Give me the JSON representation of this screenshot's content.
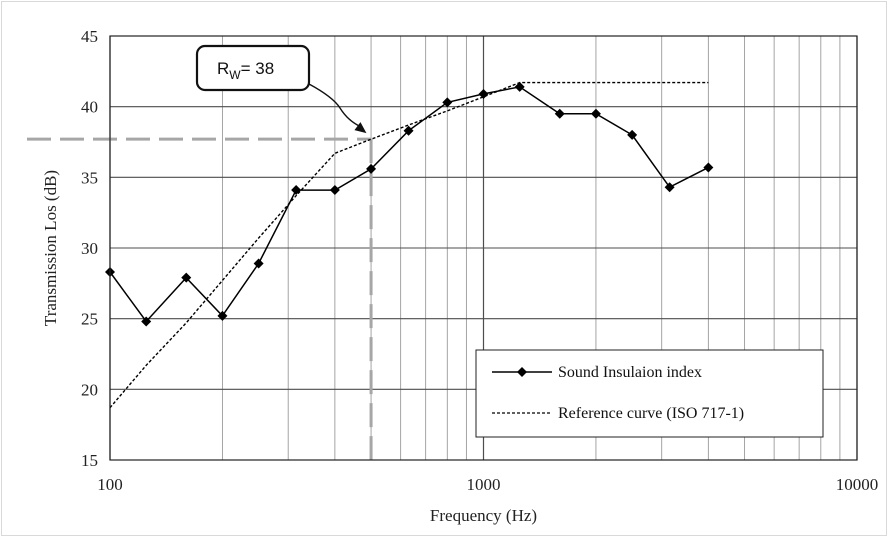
{
  "chart_data": {
    "type": "line",
    "xlabel": "Frequency  (Hz)",
    "ylabel": "Transmission Los (dB)",
    "x_scale": "log",
    "xlim": [
      100,
      10000
    ],
    "ylim": [
      15,
      45
    ],
    "x_ticks": [
      100,
      1000,
      10000
    ],
    "x_tick_labels": [
      "100",
      "1000",
      "10000"
    ],
    "y_ticks": [
      15,
      20,
      25,
      30,
      35,
      40,
      45
    ],
    "y_tick_labels": [
      "15",
      "20",
      "25",
      "30",
      "35",
      "40",
      "45"
    ],
    "grid": true,
    "legend_position": "bottom-right",
    "series": [
      {
        "name": "Sound Insulaion index",
        "style": "solid-diamond",
        "color": "#000000",
        "x": [
          100,
          125,
          160,
          200,
          250,
          315,
          400,
          500,
          630,
          800,
          1000,
          1250,
          1600,
          2000,
          2500,
          3150,
          4000
        ],
        "y": [
          28.3,
          24.8,
          27.9,
          25.2,
          28.9,
          34.1,
          34.1,
          35.6,
          38.3,
          40.3,
          40.9,
          41.4,
          39.5,
          39.5,
          38.0,
          34.3,
          35.7
        ]
      },
      {
        "name": "Reference curve (ISO 717-1)",
        "style": "dashed",
        "color": "#000000",
        "x": [
          100,
          125,
          160,
          200,
          250,
          315,
          400,
          500,
          630,
          800,
          1000,
          1250,
          1600,
          2000,
          2500,
          3150,
          4000
        ],
        "y": [
          18.7,
          21.7,
          24.7,
          27.7,
          30.7,
          33.7,
          36.7,
          37.7,
          38.7,
          39.7,
          40.7,
          41.7,
          41.7,
          41.7,
          41.7,
          41.7,
          41.7
        ]
      }
    ],
    "annotation": {
      "label_main": "R",
      "label_sub": "W",
      "label_value": "= 38",
      "arrow_to": {
        "x": 480,
        "y": 38.2
      },
      "guide_y": 37.7,
      "guide_x": 500,
      "guide_color": "#a6a6a6"
    }
  }
}
